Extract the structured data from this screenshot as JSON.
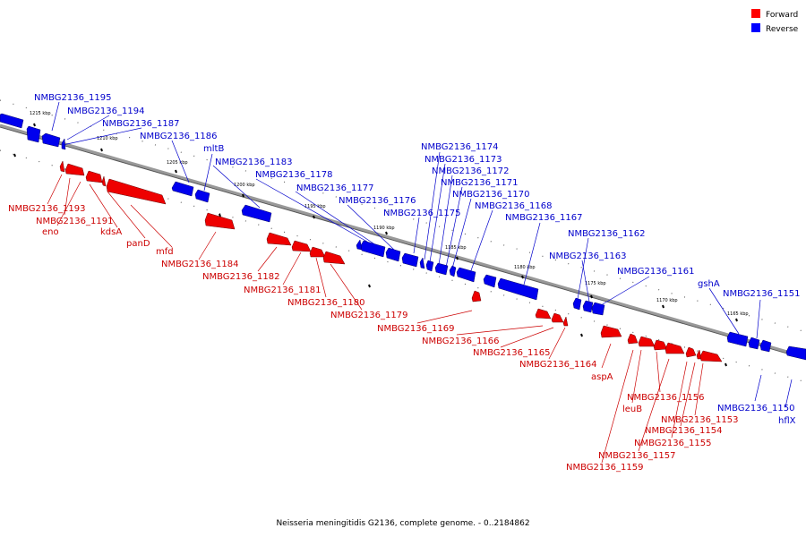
{
  "caption": "Neisseria meningitidis G2136, complete genome. - 0..2184862",
  "legend": [
    {
      "label": "Forward",
      "color": "#ff0000"
    },
    {
      "label": "Reverse",
      "color": "#0000ff"
    }
  ],
  "colors": {
    "forward": "#ee0000",
    "reverse": "#0000ee",
    "backbone": "#888888"
  },
  "kbp_ticks": [
    "1215 kbp",
    "1210 kbp",
    "1205 kbp",
    "1200 kbp",
    "1195 kbp",
    "1190 kbp",
    "1185 kbp",
    "1180 kbp",
    "1175 kbp",
    "1170 kbp",
    "1165 kbp"
  ],
  "reverse_labels": [
    "NMBG2136_1195",
    "NMBG2136_1194",
    "NMBG2136_1187",
    "NMBG2136_1186",
    "mltB",
    "NMBG2136_1183",
    "NMBG2136_1178",
    "NMBG2136_1177",
    "NMBG2136_1176",
    "NMBG2136_1175",
    "NMBG2136_1174",
    "NMBG2136_1173",
    "NMBG2136_1172",
    "NMBG2136_1171",
    "NMBG2136_1170",
    "NMBG2136_1168",
    "NMBG2136_1167",
    "NMBG2136_1162",
    "NMBG2136_1163",
    "NMBG2136_1161",
    "gshA",
    "NMBG2136_1151",
    "NMBG2136_1150",
    "hflX"
  ],
  "forward_labels": [
    "NMBG2136_1193",
    "NMBG2136_1191",
    "eno",
    "kdsA",
    "panD",
    "mfd",
    "NMBG2136_1184",
    "NMBG2136_1182",
    "NMBG2136_1181",
    "NMBG2136_1180",
    "NMBG2136_1179",
    "NMBG2136_1169",
    "NMBG2136_1166",
    "NMBG2136_1165",
    "NMBG2136_1164",
    "aspA",
    "NMBG2136_1156",
    "leuB",
    "NMBG2136_1153",
    "NMBG2136_1154",
    "NMBG2136_1155",
    "NMBG2136_1157",
    "NMBG2136_1159"
  ]
}
